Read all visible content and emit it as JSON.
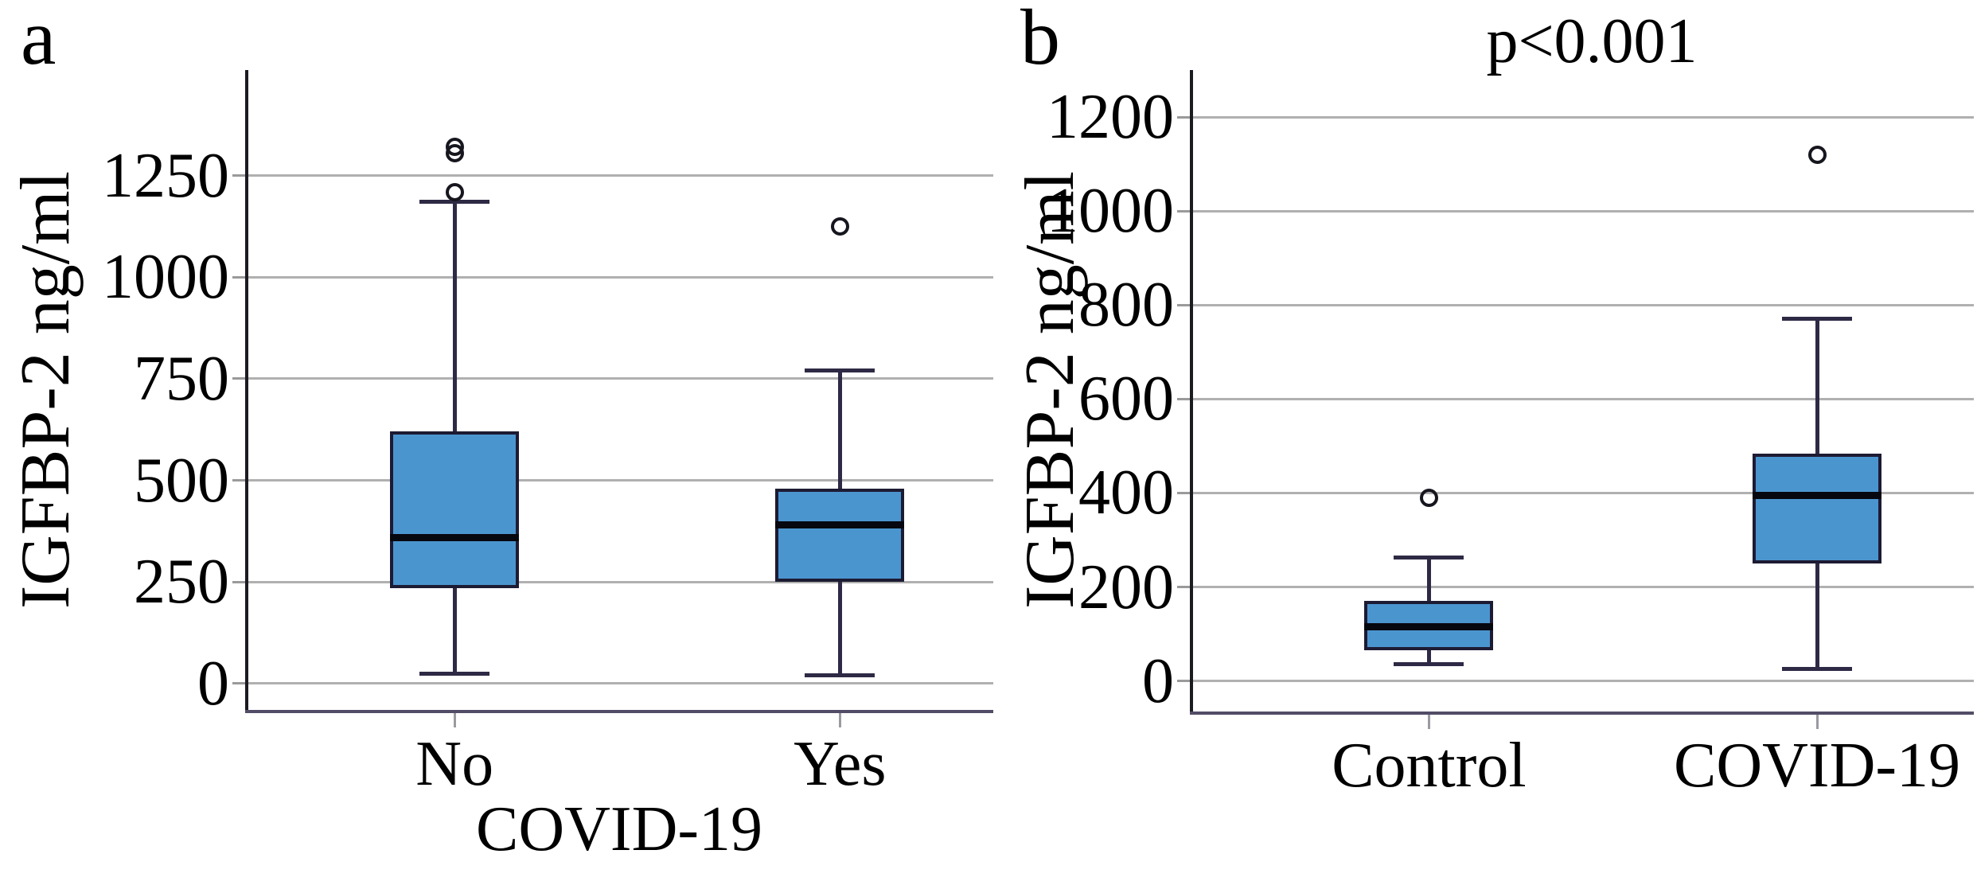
{
  "figure_type": "two-panel box plot figure",
  "colors": {
    "box_fill": "#4b95cf",
    "box_border": "#1d1b33",
    "median_line": "#07070f",
    "whisker": "#2e2a45",
    "gridline": "#b0b0b0",
    "spine_left": "#1b1b22",
    "spine_bottom": "#524c66",
    "text": "#000000",
    "background": "#ffffff"
  },
  "chart_data": [
    {
      "type": "box",
      "panel_label": "a",
      "title": "",
      "ylabel": "IGFBP-2 ng/ml",
      "xlabel": "COVID-19",
      "categories": [
        "No",
        "Yes"
      ],
      "yticks": [
        0,
        250,
        500,
        750,
        1000,
        1250
      ],
      "ylim": [
        -65,
        1510
      ],
      "grid": true,
      "legend": "none",
      "series": [
        {
          "name": "No",
          "whisker_low": 25,
          "q1": 235,
          "median": 360,
          "q3": 620,
          "whisker_high": 1185,
          "outliers": [
            1210,
            1305,
            1320
          ]
        },
        {
          "name": "Yes",
          "whisker_low": 20,
          "q1": 250,
          "median": 390,
          "q3": 480,
          "whisker_high": 770,
          "outliers": [
            1125
          ]
        }
      ]
    },
    {
      "type": "box",
      "panel_label": "b",
      "title": "p<0.001",
      "ylabel": "IGFBP-2 ng/ml",
      "xlabel": "",
      "categories": [
        "Control",
        "COVID-19"
      ],
      "yticks": [
        0,
        200,
        400,
        600,
        800,
        1000,
        1200
      ],
      "ylim": [
        -65,
        1300
      ],
      "grid": true,
      "legend": "none",
      "series": [
        {
          "name": "Control",
          "whisker_low": 35,
          "q1": 65,
          "median": 115,
          "q3": 170,
          "whisker_high": 262,
          "outliers": [
            390
          ]
        },
        {
          "name": "COVID-19",
          "whisker_low": 25,
          "q1": 250,
          "median": 395,
          "q3": 483,
          "whisker_high": 770,
          "outliers": [
            1120
          ]
        }
      ]
    }
  ]
}
